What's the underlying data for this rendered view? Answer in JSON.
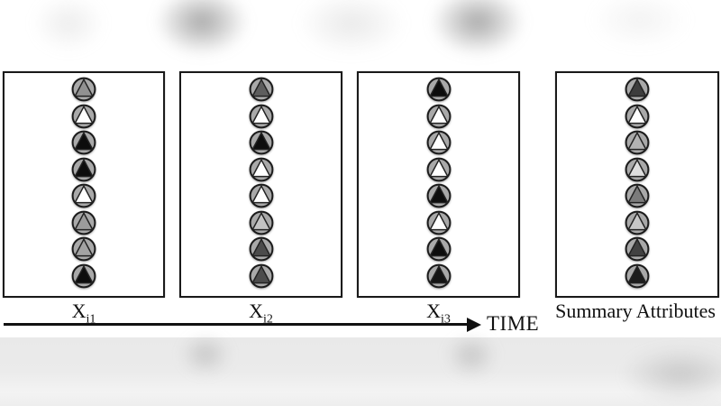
{
  "figure": {
    "description": "Temporal attribute diagram: three timestep panels of triangle-in-circle attribute markers followed by a summary panel",
    "marker_icon": "triangle-in-circle-icon",
    "panels": [
      {
        "label_base": "X",
        "label_sub": "i1",
        "triangle_fills": [
          "#919191",
          "#ffffff",
          "#0d0d0d",
          "#0d0d0d",
          "#ffffff",
          "#9b9b9b",
          "#a3a3a3",
          "#0d0d0d"
        ]
      },
      {
        "label_base": "X",
        "label_sub": "i2",
        "triangle_fills": [
          "#5e5e5e",
          "#ffffff",
          "#0d0d0d",
          "#ffffff",
          "#ffffff",
          "#c3c3c3",
          "#4c4c4c",
          "#4c4c4c"
        ]
      },
      {
        "label_base": "X",
        "label_sub": "i3",
        "triangle_fills": [
          "#0d0d0d",
          "#ffffff",
          "#ffffff",
          "#ffffff",
          "#0d0d0d",
          "#ffffff",
          "#0d0d0d",
          "#141414"
        ]
      },
      {
        "label_base": "Summary Attributes",
        "label_sub": "",
        "triangle_fills": [
          "#3d3d3d",
          "#ffffff",
          "#b2b2b2",
          "#dedede",
          "#7b7b7b",
          "#c7c7c7",
          "#424242",
          "#1d1d1d"
        ]
      }
    ],
    "timeline": {
      "label": "TIME"
    },
    "colors": {
      "circle_fill": "#a9a9a9",
      "circle_stroke": "#1b1b1b",
      "triangle_stroke": "#222222",
      "box_border": "#1a1a1a",
      "box_fill": "#ffffff",
      "arrow": "#111111",
      "text": "#111111"
    }
  }
}
